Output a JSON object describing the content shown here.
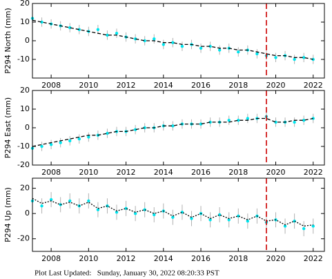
{
  "chart_data": [
    {
      "type": "scatter",
      "ylabel": "P294 North (mm)",
      "x": [
        2007.0,
        2007.5,
        2008.0,
        2008.5,
        2009.0,
        2009.5,
        2010.0,
        2010.5,
        2011.0,
        2011.5,
        2012.0,
        2012.5,
        2013.0,
        2013.5,
        2014.0,
        2014.5,
        2015.0,
        2015.5,
        2016.0,
        2016.5,
        2017.0,
        2017.5,
        2018.0,
        2018.5,
        2019.0,
        2019.5,
        2020.0,
        2020.5,
        2021.0,
        2021.5,
        2022.0
      ],
      "series": [
        {
          "color": "#00e5ee",
          "style": "points",
          "values": [
            12,
            10,
            9,
            8,
            7,
            6,
            5,
            6,
            3,
            4,
            2,
            1,
            0,
            1,
            -2,
            -1,
            -3,
            -2,
            -4,
            -3,
            -5,
            -4,
            -6,
            -5,
            -7,
            -8,
            -9,
            -8,
            -10,
            -9,
            -10
          ]
        },
        {
          "color": "#000000",
          "style": "dashed",
          "values": [
            11,
            10,
            9,
            8,
            7,
            6,
            5,
            4,
            3,
            3,
            2,
            1,
            0,
            0,
            -1,
            -1,
            -2,
            -2,
            -3,
            -3,
            -4,
            -4,
            -5,
            -5,
            -6,
            -7,
            -8,
            -8,
            -9,
            -9,
            -10
          ]
        }
      ],
      "yerr": 2.5,
      "error_color": "#b0b0b0",
      "xlim": [
        2007.0,
        2022.6
      ],
      "xticks": [
        2008,
        2010,
        2012,
        2014,
        2016,
        2018,
        2020,
        2022
      ],
      "ylim": [
        -20,
        20
      ],
      "yticks": [
        -10,
        0,
        10,
        20
      ],
      "vline": 2019.5,
      "vline_color": "#cc0000"
    },
    {
      "type": "scatter",
      "ylabel": "P294 East (mm)",
      "x": [
        2007.0,
        2007.5,
        2008.0,
        2008.5,
        2009.0,
        2009.5,
        2010.0,
        2010.5,
        2011.0,
        2011.5,
        2012.0,
        2012.5,
        2013.0,
        2013.5,
        2014.0,
        2014.5,
        2015.0,
        2015.5,
        2016.0,
        2016.5,
        2017.0,
        2017.5,
        2018.0,
        2018.5,
        2019.0,
        2019.5,
        2020.0,
        2020.5,
        2021.0,
        2021.5,
        2022.0
      ],
      "series": [
        {
          "color": "#00e5ee",
          "style": "points",
          "values": [
            -11,
            -10,
            -9,
            -8,
            -7,
            -6,
            -5,
            -4,
            -3,
            -2,
            -2,
            -1,
            0,
            0,
            1,
            1,
            2,
            2,
            2,
            3,
            3,
            4,
            4,
            5,
            5,
            6,
            3,
            3,
            3,
            4,
            5
          ]
        },
        {
          "color": "#000000",
          "style": "dashed",
          "values": [
            -10,
            -9,
            -8,
            -7,
            -6,
            -5,
            -4,
            -4,
            -3,
            -2,
            -2,
            -1,
            0,
            0,
            1,
            1,
            2,
            2,
            2,
            3,
            3,
            3,
            4,
            4,
            5,
            5,
            3,
            3,
            4,
            4,
            5
          ]
        }
      ],
      "yerr": 2.5,
      "error_color": "#b0b0b0",
      "xlim": [
        2007.0,
        2022.6
      ],
      "xticks": [
        2008,
        2010,
        2012,
        2014,
        2016,
        2018,
        2020,
        2022
      ],
      "ylim": [
        -20,
        20
      ],
      "yticks": [
        -20,
        -10,
        0,
        10,
        20
      ],
      "vline": 2019.5,
      "vline_color": "#cc0000"
    },
    {
      "type": "scatter",
      "ylabel": "P294 Up (mm)",
      "x": [
        2007.0,
        2007.5,
        2008.0,
        2008.5,
        2009.0,
        2009.5,
        2010.0,
        2010.5,
        2011.0,
        2011.5,
        2012.0,
        2012.5,
        2013.0,
        2013.5,
        2014.0,
        2014.5,
        2015.0,
        2015.5,
        2016.0,
        2016.5,
        2017.0,
        2017.5,
        2018.0,
        2018.5,
        2019.0,
        2019.5,
        2020.0,
        2020.5,
        2021.0,
        2021.5,
        2022.0
      ],
      "series": [
        {
          "color": "#00e5ee",
          "style": "points",
          "values": [
            10,
            6,
            11,
            7,
            10,
            6,
            10,
            3,
            6,
            1,
            4,
            0,
            3,
            -1,
            2,
            -3,
            1,
            -4,
            0,
            -5,
            -1,
            -5,
            -2,
            -6,
            -2,
            -7,
            -5,
            -10,
            -6,
            -12,
            -10
          ]
        },
        {
          "color": "#000000",
          "style": "dotted",
          "values": [
            12,
            8,
            10,
            7,
            9,
            6,
            9,
            4,
            6,
            2,
            4,
            1,
            3,
            0,
            2,
            -2,
            1,
            -3,
            0,
            -4,
            -1,
            -4,
            -2,
            -5,
            -2,
            -6,
            -5,
            -9,
            -6,
            -10,
            -9
          ]
        }
      ],
      "yerr": 6,
      "error_color": "#b0b0b0",
      "xlim": [
        2007.0,
        2022.6
      ],
      "xticks": [
        2008,
        2010,
        2012,
        2014,
        2016,
        2018,
        2020,
        2022
      ],
      "ylim": [
        -30,
        28
      ],
      "yticks": [
        -20,
        0,
        20
      ],
      "vline": 2019.5,
      "vline_color": "#cc0000"
    }
  ],
  "footer": "Plot Last Updated:   Sunday, January 30, 2022 08:20:33 PST"
}
